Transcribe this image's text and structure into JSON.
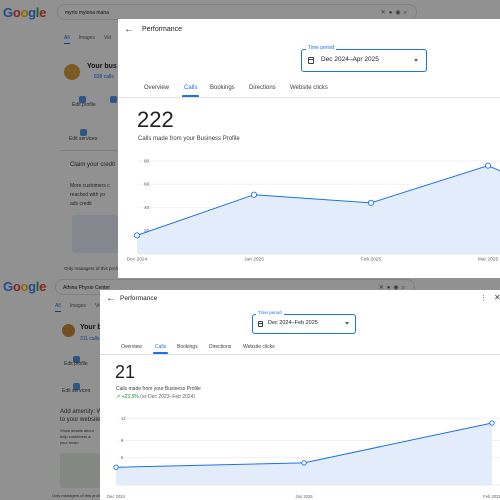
{
  "page_top": {
    "search_query": "myrto myiona mana",
    "search_tabs": [
      "All",
      "Images",
      "Vid"
    ],
    "business_title": "Your bus",
    "business_sub": "838 calls",
    "actions": [
      "Edit profile",
      "Ed"
    ],
    "edit_services": "Edit services",
    "claim_title": "Claim your credit",
    "claim_text": [
      "More customers c",
      "reached with yo",
      "ads credit"
    ],
    "footer_note": "Only managers of this profile"
  },
  "page_bottom": {
    "search_query": "Athina Physio Center",
    "search_tabs": [
      "All",
      "Images",
      "Vid"
    ],
    "business_title": "Your bus",
    "business_sub": "311 calls",
    "actions": [
      "Edit profile"
    ],
    "edit_services": "Edit services",
    "add_text": [
      "Add amenity: We",
      "to your website"
    ],
    "small_text": [
      "Show details about",
      "help customers a",
      "your busin"
    ],
    "footer_note": "Only managers of this profile"
  },
  "dialog1": {
    "title": "Performance",
    "time_label": "Time period",
    "time_value": "Dec 2024–Apr 2025",
    "tabs": [
      "Overview",
      "Calls",
      "Bookings",
      "Directions",
      "Website clicks"
    ],
    "active_tab": "Calls",
    "total": "222",
    "subtitle": "Calls made from your Business Profile"
  },
  "dialog2": {
    "title": "Performance",
    "time_label": "Time period",
    "time_value": "Dec 2024–Feb 2025",
    "tabs": [
      "Overview",
      "Calls",
      "Bookings",
      "Directions",
      "Website clicks"
    ],
    "active_tab": "Calls",
    "total": "21",
    "subtitle": "Calls made from your Business Profile",
    "change_pct": "+23.5%",
    "change_text": "(vs Dec 2023–Feb 2024)"
  },
  "chart_data": [
    {
      "type": "area",
      "x_labels": [
        "Dec 2024",
        "Jan 2025",
        "Feb 2025",
        "Mar 2025"
      ],
      "x": [
        0,
        1,
        2,
        3,
        3.35
      ],
      "y": [
        16,
        51,
        44,
        76,
        61
      ],
      "yticks": [
        20,
        40,
        60,
        80
      ],
      "ylim": [
        0,
        86
      ],
      "title": "",
      "xlabel": "",
      "ylabel": "",
      "color": "#1a73e8"
    },
    {
      "type": "area",
      "x_labels": [
        "Dec 2024",
        "Jan 2025",
        "Feb 2025"
      ],
      "x": [
        0,
        1,
        2
      ],
      "y": [
        3.2,
        4.0,
        11.2
      ],
      "yticks": [
        5,
        8,
        12
      ],
      "ylim": [
        0,
        13
      ],
      "title": "",
      "xlabel": "",
      "ylabel": "",
      "color": "#1a73e8"
    }
  ],
  "colors": {
    "accent": "#1a73e8",
    "area_fill": "#e3ecfb",
    "overlay": "rgba(0,0,0,0.43)"
  },
  "icons": [
    "back-arrow-icon",
    "calendar-icon",
    "dropdown-caret-icon",
    "more-vert-icon",
    "close-icon",
    "trend-up-icon",
    "mic-icon",
    "lens-icon",
    "search-icon"
  ]
}
